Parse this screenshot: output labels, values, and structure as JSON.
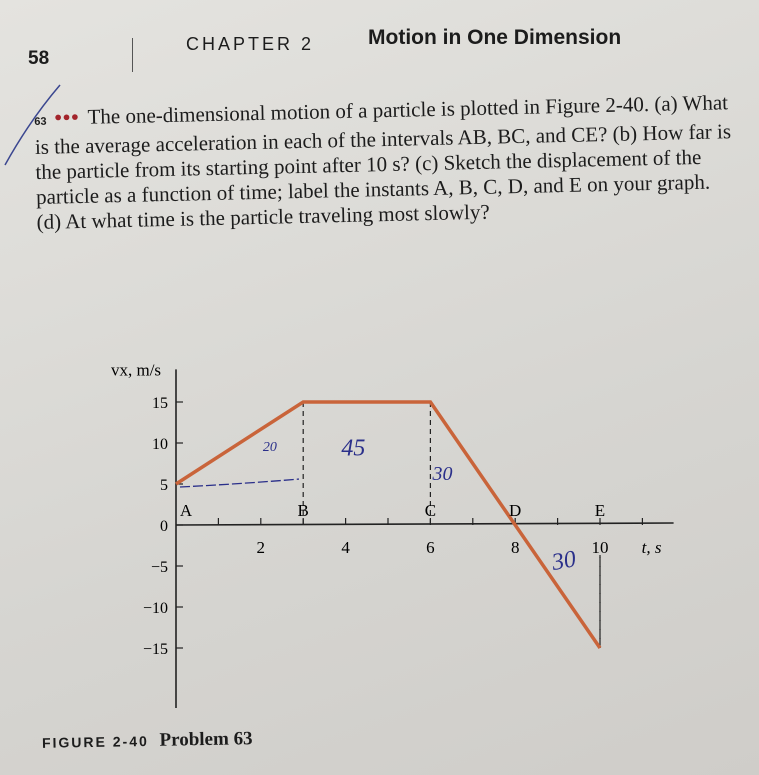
{
  "header": {
    "page_number": "58",
    "chapter_label": "CHAPTER 2",
    "chapter_title": "Motion in One Dimension"
  },
  "problem": {
    "number": "63",
    "difficulty": "•••",
    "text": "The one-dimensional motion of a particle is plotted in Figure 2-40. (a) What is the average acceleration in each of the intervals AB, BC, and CE? (b) How far is the particle from its starting point after 10 s? (c) Sketch the displacement of the particle as a function of time; label the instants A, B, C, D, and E on your graph. (d) At what time is the particle traveling most slowly?"
  },
  "caption": {
    "figure": "FIGURE 2-40",
    "title": "Problem 63"
  },
  "handwriting": {
    "ab": "20",
    "bc": "45",
    "c": "30",
    "de": "30",
    "color": "#2a2f8a"
  },
  "chart_data": {
    "type": "line",
    "xlabel": "t, s",
    "ylabel": "vx, m/s",
    "x": [
      0,
      3,
      6,
      10
    ],
    "y": [
      5,
      15,
      15,
      -15
    ],
    "xlim": [
      0,
      11.5
    ],
    "ylim": [
      -15,
      18
    ],
    "xticks": [
      2,
      4,
      6,
      8,
      10
    ],
    "yticks": [
      15,
      10,
      5,
      0,
      -5,
      -10,
      -15
    ],
    "point_labels": [
      {
        "label": "A",
        "t": 0
      },
      {
        "label": "B",
        "t": 3
      },
      {
        "label": "C",
        "t": 6
      },
      {
        "label": "D",
        "t": 8
      },
      {
        "label": "E",
        "t": 10
      }
    ],
    "line_color": "#c9643a",
    "grid": false
  }
}
